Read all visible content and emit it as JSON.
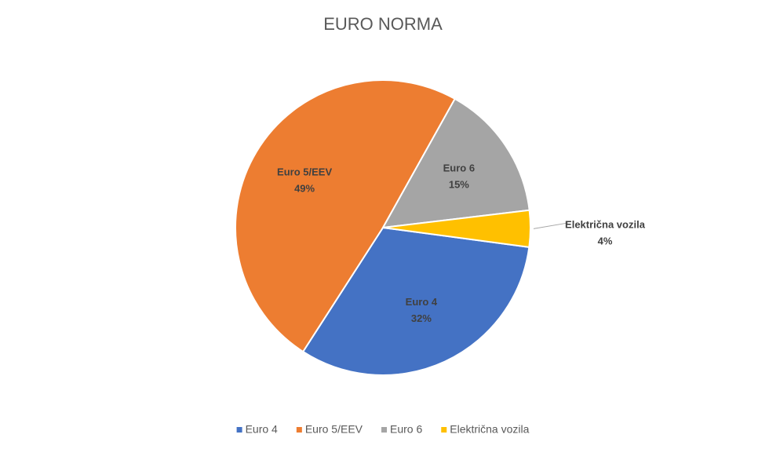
{
  "chart_data": {
    "type": "pie",
    "title": "EURO NORMA",
    "categories": [
      "Euro 4",
      "Euro 5/EEV",
      "Euro 6",
      "Električna vozila"
    ],
    "values": [
      32,
      49,
      15,
      4
    ],
    "value_labels": [
      "32%",
      "49%",
      "15%",
      "4%"
    ],
    "colors": [
      "#4472c4",
      "#ed7d31",
      "#a5a5a5",
      "#ffc000"
    ],
    "legend": "bottom"
  }
}
